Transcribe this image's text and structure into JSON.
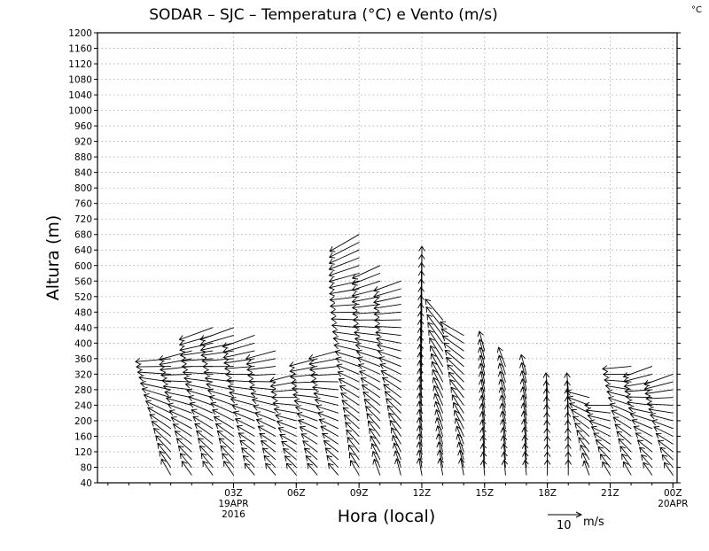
{
  "chart_data": {
    "type": "wind_barb_profile",
    "title": "SODAR – SJC – Temperatura (°C) e Vento (m/s)",
    "unit_corner": "°C",
    "xlabel": "Hora (local)",
    "ylabel": "Altura (m)",
    "ylim": [
      40,
      1200
    ],
    "ytick_step": 40,
    "xlim_hours": [
      -3.5,
      24.2
    ],
    "xticks": [
      {
        "hour": 3,
        "label": "03Z",
        "sublabel": "19APR",
        "sublabel2": "2016"
      },
      {
        "hour": 6,
        "label": "06Z"
      },
      {
        "hour": 9,
        "label": "09Z"
      },
      {
        "hour": 12,
        "label": "12Z"
      },
      {
        "hour": 15,
        "label": "15Z"
      },
      {
        "hour": 18,
        "label": "18Z"
      },
      {
        "hour": 21,
        "label": "21Z"
      },
      {
        "hour": 24,
        "label": "00Z",
        "sublabel": "20APR"
      }
    ],
    "legend": {
      "value": "10",
      "unit": "m/s"
    },
    "vector_direction_convention": "degrees, direction the arrow points (0 = up/north, 90 = right/east)",
    "series": [
      {
        "hour": 0,
        "top": 360,
        "speed_low": 5.5,
        "speed_high": 10.5,
        "dir_low": 330,
        "dir_high": 265
      },
      {
        "hour": 1,
        "top": 380,
        "speed_low": 5,
        "speed_high": 10,
        "dir_low": 325,
        "dir_high": 255
      },
      {
        "hour": 2,
        "top": 440,
        "speed_low": 5,
        "speed_high": 10.5,
        "dir_low": 325,
        "dir_high": 250
      },
      {
        "hour": 3,
        "top": 440,
        "speed_low": 5,
        "speed_high": 10.5,
        "dir_low": 325,
        "dir_high": 250
      },
      {
        "hour": 4,
        "top": 420,
        "speed_low": 4.5,
        "speed_high": 10,
        "dir_low": 320,
        "dir_high": 250
      },
      {
        "hour": 5,
        "top": 380,
        "speed_low": 4.5,
        "speed_high": 9,
        "dir_low": 320,
        "dir_high": 255
      },
      {
        "hour": 6,
        "top": 320,
        "speed_low": 4.5,
        "speed_high": 8,
        "dir_low": 320,
        "dir_high": 255
      },
      {
        "hour": 7,
        "top": 360,
        "speed_low": 4.5,
        "speed_high": 8.5,
        "dir_low": 320,
        "dir_high": 255
      },
      {
        "hour": 8,
        "top": 380,
        "speed_low": 4.5,
        "speed_high": 9,
        "dir_low": 320,
        "dir_high": 255
      },
      {
        "hour": 9,
        "top": 680,
        "speed_low": 5,
        "speed_high": 10,
        "dir_low": 330,
        "dir_high": 240
      },
      {
        "hour": 10,
        "top": 600,
        "speed_low": 5,
        "speed_high": 9,
        "dir_low": 340,
        "dir_high": 245
      },
      {
        "hour": 11,
        "top": 560,
        "speed_low": 5,
        "speed_high": 8.5,
        "dir_low": 345,
        "dir_high": 250
      },
      {
        "hour": 12,
        "top": 580,
        "speed_low": 5,
        "speed_high": 8,
        "dir_low": 350,
        "dir_high": 0
      },
      {
        "hour": 13,
        "top": 460,
        "speed_low": 5,
        "speed_high": 8,
        "dir_low": 350,
        "dir_high": 320
      },
      {
        "hour": 14,
        "top": 420,
        "speed_low": 5,
        "speed_high": 8,
        "dir_low": 350,
        "dir_high": 300
      },
      {
        "hour": 15,
        "top": 380,
        "speed_low": 4.5,
        "speed_high": 6,
        "dir_low": 355,
        "dir_high": 345
      },
      {
        "hour": 16,
        "top": 340,
        "speed_low": 4.5,
        "speed_high": 6,
        "dir_low": 355,
        "dir_high": 340
      },
      {
        "hour": 17,
        "top": 320,
        "speed_low": 4.5,
        "speed_high": 6,
        "dir_low": 355,
        "dir_high": 345
      },
      {
        "hour": 18,
        "top": 280,
        "speed_low": 4.5,
        "speed_high": 5,
        "dir_low": 0,
        "dir_high": 355
      },
      {
        "hour": 19,
        "top": 280,
        "speed_low": 4.5,
        "speed_high": 5,
        "dir_low": 0,
        "dir_high": 355
      },
      {
        "hour": 20,
        "top": 260,
        "speed_low": 4.5,
        "speed_high": 7,
        "dir_low": 340,
        "dir_high": 285
      },
      {
        "hour": 21,
        "top": 240,
        "speed_low": 4.5,
        "speed_high": 7.5,
        "dir_low": 330,
        "dir_high": 270
      },
      {
        "hour": 22,
        "top": 340,
        "speed_low": 4.5,
        "speed_high": 8.5,
        "dir_low": 330,
        "dir_high": 265
      },
      {
        "hour": 23,
        "top": 340,
        "speed_low": 4.5,
        "speed_high": 9,
        "dir_low": 325,
        "dir_high": 250
      },
      {
        "hour": 24,
        "top": 320,
        "speed_low": 4.5,
        "speed_high": 9,
        "dir_low": 325,
        "dir_high": 250
      }
    ]
  }
}
